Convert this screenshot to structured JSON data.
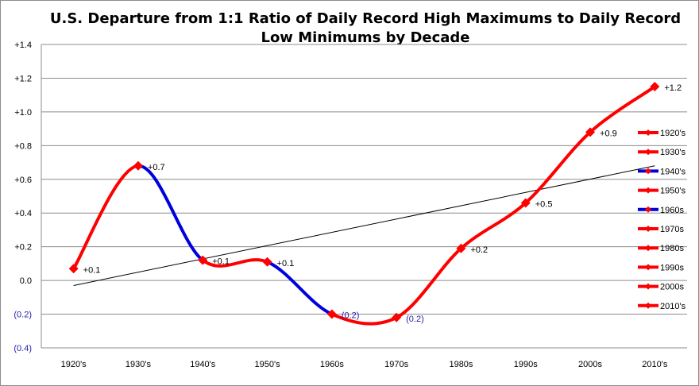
{
  "chart_data": {
    "type": "line",
    "title_line1": "U.S. Departure from 1:1 Ratio of Daily Record High Maximums to Daily Record",
    "title_line2": "Low Minimums by Decade",
    "xlabel": "",
    "ylabel": "",
    "ylim": [
      -0.4,
      1.4
    ],
    "yticks": [
      {
        "value": 1.4,
        "label": "+1.4"
      },
      {
        "value": 1.2,
        "label": "+1.2"
      },
      {
        "value": 1.0,
        "label": "+1.0"
      },
      {
        "value": 0.8,
        "label": "+0.8"
      },
      {
        "value": 0.6,
        "label": "+0.6"
      },
      {
        "value": 0.4,
        "label": "+0.4"
      },
      {
        "value": 0.2,
        "label": "+0.2"
      },
      {
        "value": 0.0,
        "label": "0.0"
      },
      {
        "value": -0.2,
        "label": "(0.2)",
        "color": "#1f1fb0"
      },
      {
        "value": -0.4,
        "label": "(0.4)",
        "color": "#1f1fb0"
      }
    ],
    "grid": true,
    "legend_position": "right",
    "categories": [
      "1920's",
      "1930's",
      "1940's",
      "1950's",
      "1960s",
      "1970s",
      "1980s",
      "1990s",
      "2000s",
      "2010's"
    ],
    "values": [
      0.07,
      0.68,
      0.12,
      0.11,
      -0.2,
      -0.22,
      0.19,
      0.46,
      0.88,
      1.15
    ],
    "data_labels": [
      "+0.1",
      "+0.7",
      "+0.1",
      "+0.1",
      "(0.2)",
      "(0.2)",
      "+0.2",
      "+0.5",
      "+0.9",
      "+1.2"
    ],
    "data_label_colors": [
      "#000",
      "#000",
      "#000",
      "#000",
      "#1f1fb0",
      "#1f1fb0",
      "#000",
      "#000",
      "#000",
      "#000"
    ],
    "segment_colors": [
      "#ff0000",
      "#0000dd",
      "#ff0000",
      "#0000dd",
      "#ff0000",
      "#ff0000",
      "#ff0000",
      "#ff0000",
      "#ff0000"
    ],
    "series": [
      {
        "name": "1920's",
        "color": "#ff0000"
      },
      {
        "name": "1930's",
        "color": "#ff0000"
      },
      {
        "name": "1940's",
        "color": "#0000dd"
      },
      {
        "name": "1950's",
        "color": "#ff0000"
      },
      {
        "name": "1960s",
        "color": "#0000dd"
      },
      {
        "name": "1970s",
        "color": "#ff0000"
      },
      {
        "name": "1980s",
        "color": "#ff0000"
      },
      {
        "name": "1990s",
        "color": "#ff0000"
      },
      {
        "name": "2000s",
        "color": "#ff0000"
      },
      {
        "name": "2010's",
        "color": "#ff0000"
      }
    ],
    "trendline": {
      "color": "#000000",
      "start": -0.03,
      "end": 0.68
    },
    "marker_color": "#ff0000"
  }
}
